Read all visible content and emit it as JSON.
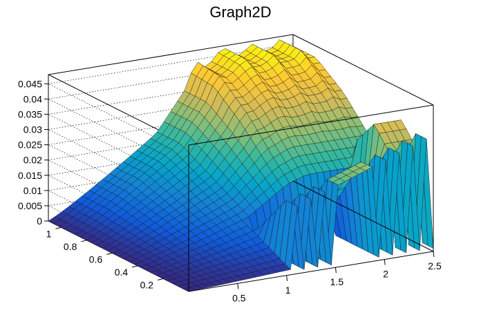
{
  "chart_data": {
    "type": "surface",
    "title": "Graph2D",
    "xlabel": "",
    "ylabel": "",
    "zlabel": "",
    "xlim": [
      0,
      2.5
    ],
    "ylim": [
      0,
      1.1
    ],
    "zlim": [
      0,
      0.048
    ],
    "x_ticks": [
      "0.5",
      "1",
      "1.5",
      "2",
      "2.5"
    ],
    "y_ticks": [
      "0.2",
      "0.4",
      "0.6",
      "0.8",
      "1"
    ],
    "z_ticks": [
      "0",
      "0.005",
      "0.01",
      "0.015",
      "0.02",
      "0.025",
      "0.03",
      "0.035",
      "0.04",
      "0.045"
    ],
    "grid": true,
    "palette": [
      "#352a87",
      "#0f5cdd",
      "#1481d6",
      "#06a4ca",
      "#2eb7a4",
      "#87bf77",
      "#d1bb59",
      "#fec832",
      "#f9fb0e"
    ],
    "surface_summary": {
      "z_at_origin": 0.0,
      "z_max_region": "x≈1.4–2.5, y≈0.6–1.1",
      "z_max_approx": 0.046,
      "deep_trench_below_y": 0.35,
      "trench_begins_x": 1.1,
      "low_floor_z_beyond_trench": 0.001
    }
  }
}
